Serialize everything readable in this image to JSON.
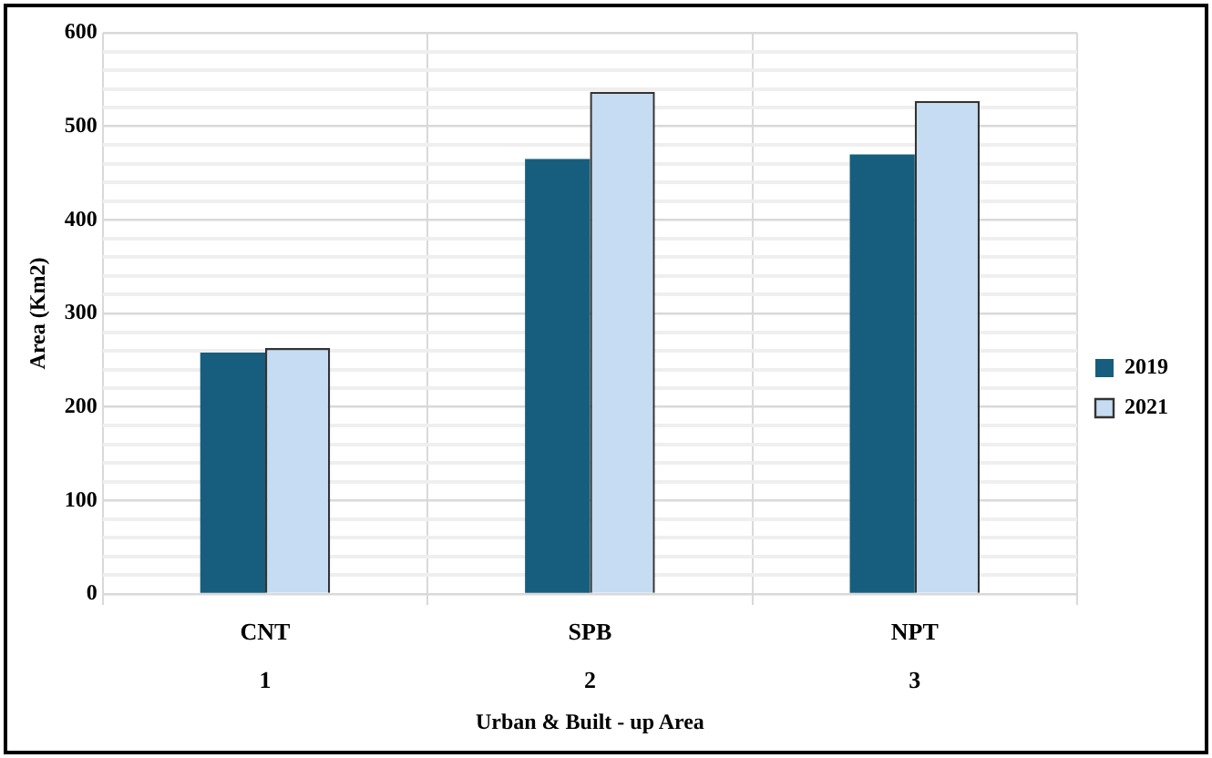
{
  "chart_data": {
    "type": "bar",
    "xlabel": "Urban & Built - up Area",
    "ylabel": "Area (Km2)",
    "categories": [
      "CNT",
      "SPB",
      "NPT"
    ],
    "series": [
      {
        "name": "2019",
        "color": "#175e7e",
        "values": [
          258,
          465,
          470
        ]
      },
      {
        "name": "2021",
        "color": "#c6dcf2",
        "values": [
          263,
          537,
          527
        ]
      }
    ],
    "ylim": [
      0,
      600
    ],
    "yticks": [
      0,
      {
        "value": 20,
        "label": null
      },
      {
        "value": 40,
        "label": null
      },
      {
        "value": 60,
        "label": null
      },
      {
        "value": 80,
        "label": null
      },
      100,
      {
        "value": 120,
        "label": null
      },
      {
        "value": 140,
        "label": null
      },
      {
        "value": 160,
        "label": null
      },
      {
        "value": 180,
        "label": null
      },
      200,
      {
        "value": 220,
        "label": null
      },
      {
        "value": 240,
        "label": null
      },
      {
        "value": 260,
        "label": null
      },
      {
        "value": 280,
        "label": null
      },
      300,
      {
        "value": 320,
        "label": null
      },
      {
        "value": 340,
        "label": null
      },
      {
        "value": 360,
        "label": null
      },
      {
        "value": 380,
        "label": null
      },
      400,
      {
        "value": 420,
        "label": null
      },
      {
        "value": 440,
        "label": null
      },
      {
        "value": 460,
        "label": null
      },
      {
        "value": 480,
        "label": null
      },
      500,
      {
        "value": 520,
        "label": null
      },
      {
        "value": 540,
        "label": null
      },
      {
        "value": 560,
        "label": null
      },
      {
        "value": 580,
        "label": null
      },
      600
    ],
    "annotations": [
      "1",
      "2",
      "3"
    ],
    "grid": true,
    "legend": "right"
  }
}
